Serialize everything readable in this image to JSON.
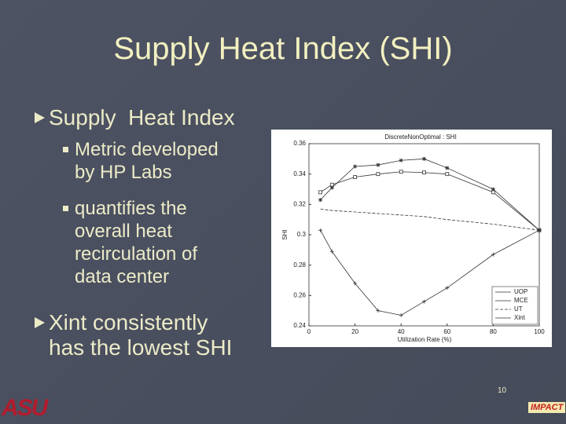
{
  "slide": {
    "title": "Supply Heat Index (SHI)",
    "bullets": [
      {
        "text": "Supply  Heat Index",
        "sub": [
          [
            "Metric developed",
            "by HP Labs"
          ],
          [
            "quantifies the",
            "overall heat",
            "recirculation of",
            "data center"
          ]
        ]
      },
      {
        "lines": [
          "Xint consistently",
          "has the lowest SHI"
        ]
      }
    ],
    "page_number": "10",
    "logos": [
      "ASU",
      "IMPACT"
    ]
  },
  "chart_data": {
    "type": "line",
    "title": "DiscreteNonOptimal : SHI",
    "x_label": "Utilization Rate (%)",
    "y_label": "SHI",
    "x": [
      5,
      10,
      20,
      30,
      40,
      50,
      60,
      80,
      100
    ],
    "series": [
      {
        "name": "UOP",
        "color": "#333333",
        "marker": "square",
        "values": [
          0.328,
          0.333,
          0.338,
          0.34,
          0.3415,
          0.341,
          0.34,
          0.328,
          0.303
        ]
      },
      {
        "name": "MCE",
        "color": "#333333",
        "marker": "star",
        "values": [
          0.323,
          0.331,
          0.345,
          0.346,
          0.349,
          0.35,
          0.344,
          0.33,
          0.303
        ]
      },
      {
        "name": "UT",
        "color": "#333333",
        "dash": true,
        "values": [
          0.317,
          0.316,
          0.315,
          0.314,
          0.313,
          0.312,
          0.31,
          0.307,
          0.303
        ]
      },
      {
        "name": "Xint",
        "color": "#333333",
        "marker": "plus",
        "values": [
          0.303,
          0.289,
          0.268,
          0.25,
          0.247,
          0.256,
          0.265,
          0.287,
          0.303
        ]
      }
    ],
    "xlim": [
      0,
      100
    ],
    "ylim": [
      0.24,
      0.36
    ],
    "xticks": [
      0,
      20,
      40,
      60,
      80,
      100
    ],
    "yticks": [
      0.24,
      0.26,
      0.28,
      0.3,
      0.32,
      0.34,
      0.36
    ],
    "legend": "lower right"
  }
}
